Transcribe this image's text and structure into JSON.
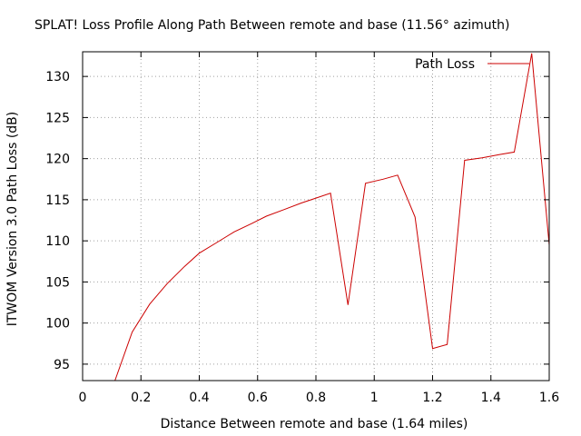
{
  "chart_data": {
    "type": "line",
    "title": "SPLAT! Loss Profile Along Path Between remote   and base (11.56° azimuth)",
    "xlabel": "Distance Between remote   and base (1.64 miles)",
    "ylabel": "ITWOM Version 3.0 Path Loss (dB)",
    "xlim": [
      0,
      1.6
    ],
    "ylim": [
      93,
      133
    ],
    "x_ticks": [
      "0",
      "0.2",
      "0.4",
      "0.6",
      "0.8",
      "1",
      "1.2",
      "1.4",
      "1.6"
    ],
    "y_ticks": [
      "95",
      "100",
      "105",
      "110",
      "115",
      "120",
      "125",
      "130"
    ],
    "grid": true,
    "legend_position": "top-right",
    "series": [
      {
        "name": "Path Loss",
        "color": "#cc0000",
        "x": [
          0.11,
          0.17,
          0.23,
          0.29,
          0.35,
          0.4,
          0.46,
          0.52,
          0.58,
          0.63,
          0.69,
          0.75,
          0.8,
          0.85,
          0.91,
          0.97,
          1.03,
          1.08,
          1.14,
          1.2,
          1.25,
          1.31,
          1.37,
          1.43,
          1.48,
          1.54,
          1.6
        ],
        "y": [
          92.9,
          98.9,
          102.3,
          104.8,
          106.9,
          108.5,
          109.8,
          111.1,
          112.1,
          113.0,
          113.8,
          114.6,
          115.2,
          115.8,
          102.2,
          117.0,
          117.5,
          118.0,
          112.9,
          96.9,
          97.4,
          119.8,
          120.1,
          120.5,
          120.8,
          132.8,
          109.5
        ]
      }
    ]
  }
}
